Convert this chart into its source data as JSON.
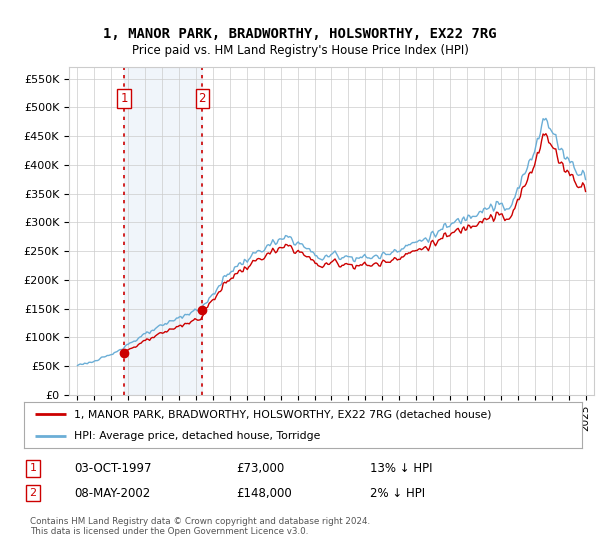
{
  "title": "1, MANOR PARK, BRADWORTHY, HOLSWORTHY, EX22 7RG",
  "subtitle": "Price paid vs. HM Land Registry's House Price Index (HPI)",
  "legend_line1": "1, MANOR PARK, BRADWORTHY, HOLSWORTHY, EX22 7RG (detached house)",
  "legend_line2": "HPI: Average price, detached house, Torridge",
  "transaction1_date": "03-OCT-1997",
  "transaction1_price": "£73,000",
  "transaction1_hpi": "13% ↓ HPI",
  "transaction2_date": "08-MAY-2002",
  "transaction2_price": "£148,000",
  "transaction2_hpi": "2% ↓ HPI",
  "footer": "Contains HM Land Registry data © Crown copyright and database right 2024.\nThis data is licensed under the Open Government Licence v3.0.",
  "hpi_color": "#6baed6",
  "price_color": "#cc0000",
  "marker_color": "#cc0000",
  "vline_color": "#cc0000",
  "shade_color": "#cfe0f0",
  "grid_color": "#cccccc",
  "background_color": "#ffffff",
  "ylim": [
    0,
    570000
  ],
  "yticks": [
    0,
    50000,
    100000,
    150000,
    200000,
    250000,
    300000,
    350000,
    400000,
    450000,
    500000,
    550000
  ],
  "xlim_start": 1994.5,
  "xlim_end": 2025.5,
  "transaction1_x": 1997.75,
  "transaction2_x": 2002.37,
  "transaction1_y": 73000,
  "transaction2_y": 148000
}
